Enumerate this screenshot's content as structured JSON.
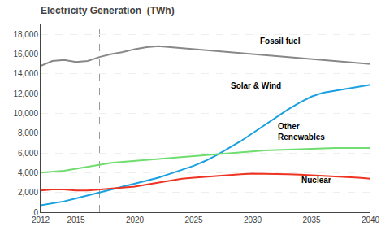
{
  "chart_data": {
    "type": "line",
    "title": "Electricity Generation  (TWh)",
    "x": [
      2012,
      2013,
      2014,
      2015,
      2016,
      2017,
      2018,
      2019,
      2020,
      2021,
      2022,
      2023,
      2024,
      2025,
      2026,
      2027,
      2028,
      2029,
      2030,
      2031,
      2032,
      2033,
      2034,
      2035,
      2036,
      2037,
      2038,
      2039,
      2040
    ],
    "series": [
      {
        "color": "#888888",
        "values": [
          14800,
          15300,
          15400,
          15200,
          15300,
          15700,
          16000,
          16200,
          16500,
          16700,
          16800,
          16700,
          16600,
          16500,
          16400,
          16300,
          16200,
          16100,
          16000,
          15900,
          15800,
          15700,
          15600,
          15500,
          15400,
          15300,
          15200,
          15100,
          15000
        ]
      },
      {
        "color": "#1aA0E0",
        "values": [
          700,
          900,
          1100,
          1400,
          1700,
          2000,
          2300,
          2600,
          2900,
          3200,
          3500,
          3900,
          4300,
          4700,
          5200,
          5800,
          6500,
          7200,
          8000,
          8800,
          9600,
          10400,
          11100,
          11700,
          12100,
          12300,
          12500,
          12700,
          12900
        ]
      },
      {
        "color": "#70DD70",
        "values": [
          4000,
          4100,
          4200,
          4400,
          4600,
          4800,
          5000,
          5100,
          5200,
          5300,
          5400,
          5500,
          5600,
          5700,
          5800,
          5900,
          6000,
          6100,
          6200,
          6250,
          6300,
          6350,
          6400,
          6450,
          6500,
          6500,
          6500,
          6500,
          6500
        ]
      },
      {
        "color": "#EE3322",
        "values": [
          2200,
          2300,
          2300,
          2200,
          2200,
          2300,
          2400,
          2500,
          2600,
          2800,
          3000,
          3200,
          3400,
          3500,
          3600,
          3700,
          3800,
          3850,
          3900,
          3900,
          3900,
          3850,
          3800,
          3750,
          3700,
          3650,
          3600,
          3500,
          3400
        ]
      }
    ],
    "vline": 2017,
    "xlim": [
      2012,
      2040
    ],
    "xticks": [
      2012,
      2015,
      2020,
      2025,
      2030,
      2035,
      2040
    ],
    "ylim": [
      0,
      19000
    ],
    "yticks": [
      0,
      {
        "value": 2000,
        "label": "2,000"
      },
      {
        "value": 4000,
        "label": "4,000"
      },
      {
        "value": 6000,
        "label": "6,000"
      },
      {
        "value": 8000,
        "label": "8,000"
      },
      {
        "value": 10000,
        "label": "10,000"
      },
      {
        "value": 12000,
        "label": "12,000"
      },
      {
        "value": 14000,
        "label": "14,000"
      },
      {
        "value": 16000,
        "label": "16,000"
      },
      {
        "value": 18000,
        "label": "18,000"
      }
    ],
    "grid": true,
    "annotations": [
      {
        "text": "Fossil fuel",
        "x": 2030.5,
        "y": 16700
      },
      {
        "text": "Solar & Wind",
        "x": 2028,
        "y": 12200
      },
      {
        "text": "Other\nRenewables",
        "x": 2032,
        "y": 7000
      },
      {
        "text": "Nuclear",
        "x": 2034,
        "y": 2600
      }
    ]
  }
}
